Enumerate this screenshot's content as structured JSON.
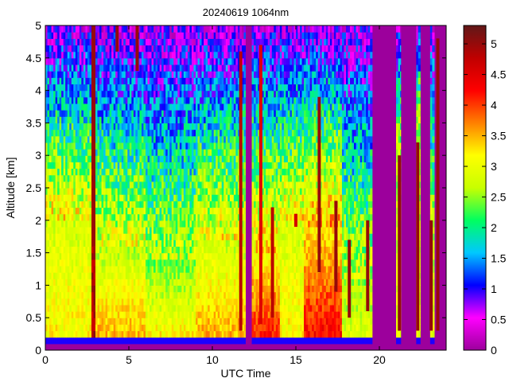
{
  "chart_data": {
    "type": "heatmap",
    "title": "20240619 1064nm",
    "xlabel": "UTC Time",
    "ylabel": "Altitude [km]",
    "xlim": [
      0,
      24
    ],
    "ylim": [
      0,
      5
    ],
    "xticks": [
      0,
      5,
      10,
      15,
      20
    ],
    "yticks": [
      0,
      0.5,
      1,
      1.5,
      2,
      2.5,
      3,
      3.5,
      4,
      4.5,
      5
    ],
    "colorbar": {
      "range": [
        0,
        5.3
      ],
      "ticks": [
        0,
        0.5,
        1,
        1.5,
        2,
        2.5,
        3,
        3.5,
        4,
        4.5,
        5
      ],
      "colormap": [
        "#9c009c",
        "#ff00ff",
        "#0000ff",
        "#00c8ff",
        "#00ff60",
        "#c8ff00",
        "#ffff00",
        "#ff8000",
        "#ff0000",
        "#c00000",
        "#601818"
      ]
    },
    "background_color": "#9c009c",
    "surface_layer": {
      "altitude_km": 0.18,
      "value": 1.0
    },
    "profile_segments": [
      {
        "t_start": 0.0,
        "t_end": 2.8,
        "top_km": 2.0,
        "low_value": 3.2,
        "high_value": 2.8
      },
      {
        "t_start": 2.8,
        "t_end": 3.0,
        "top_km": 5.0,
        "low_value": 4.8,
        "high_value": 5.0
      },
      {
        "t_start": 3.0,
        "t_end": 6.0,
        "top_km": 1.6,
        "low_value": 3.6,
        "high_value": 2.6
      },
      {
        "t_start": 6.0,
        "t_end": 9.0,
        "top_km": 1.3,
        "low_value": 3.3,
        "high_value": 2.4
      },
      {
        "t_start": 9.0,
        "t_end": 12.0,
        "top_km": 1.7,
        "low_value": 3.6,
        "high_value": 2.7
      },
      {
        "t_start": 12.3,
        "t_end": 14.0,
        "top_km": 1.5,
        "low_value": 4.3,
        "high_value": 3.0
      },
      {
        "t_start": 14.0,
        "t_end": 15.5,
        "top_km": 2.0,
        "low_value": 3.2,
        "high_value": 2.8
      },
      {
        "t_start": 15.5,
        "t_end": 17.8,
        "top_km": 1.9,
        "low_value": 4.4,
        "high_value": 3.2
      },
      {
        "t_start": 17.8,
        "t_end": 19.6,
        "top_km": 1.0,
        "low_value": 3.0,
        "high_value": 2.5
      },
      {
        "t_start": 21.0,
        "t_end": 21.3,
        "top_km": 3.0,
        "low_value": 3.0,
        "high_value": 2.5
      },
      {
        "t_start": 22.2,
        "t_end": 22.5,
        "top_km": 3.5,
        "low_value": 3.0,
        "high_value": 2.5
      },
      {
        "t_start": 23.0,
        "t_end": 23.3,
        "top_km": 2.0,
        "low_value": 3.0,
        "high_value": 2.5
      }
    ],
    "data_gaps": [
      [
        12.0,
        12.3
      ],
      [
        19.6,
        21.0
      ],
      [
        21.3,
        22.2
      ],
      [
        22.5,
        23.0
      ]
    ],
    "cloud_columns": [
      {
        "t": 2.9,
        "bottom_km": 1.6,
        "top_km": 5.0,
        "value": 5.0
      },
      {
        "t": 5.5,
        "bottom_km": 4.3,
        "top_km": 5.0,
        "value": 5.0
      },
      {
        "t": 4.3,
        "bottom_km": 4.6,
        "top_km": 5.0,
        "value": 5.0
      },
      {
        "t": 11.7,
        "bottom_km": 0.3,
        "top_km": 4.6,
        "value": 4.8
      },
      {
        "t": 12.9,
        "bottom_km": 0.4,
        "top_km": 4.7,
        "value": 4.5
      },
      {
        "t": 13.6,
        "bottom_km": 0.5,
        "top_km": 2.2,
        "value": 4.8
      },
      {
        "t": 15.0,
        "bottom_km": 1.9,
        "top_km": 2.1,
        "value": 4.6
      },
      {
        "t": 16.4,
        "bottom_km": 1.2,
        "top_km": 3.9,
        "value": 5.0
      },
      {
        "t": 17.4,
        "bottom_km": 0.9,
        "top_km": 2.3,
        "value": 5.0
      },
      {
        "t": 18.2,
        "bottom_km": 0.5,
        "top_km": 1.7,
        "value": 5.0
      },
      {
        "t": 19.3,
        "bottom_km": 0.6,
        "top_km": 2.0,
        "value": 5.0
      },
      {
        "t": 21.2,
        "bottom_km": 0.3,
        "top_km": 3.0,
        "value": 5.0
      },
      {
        "t": 22.3,
        "bottom_km": 0.3,
        "top_km": 3.2,
        "value": 5.0
      },
      {
        "t": 23.1,
        "bottom_km": 0.3,
        "top_km": 2.0,
        "value": 5.0
      },
      {
        "t": 23.5,
        "bottom_km": 0.3,
        "top_km": 4.8,
        "value": 5.0
      }
    ]
  }
}
